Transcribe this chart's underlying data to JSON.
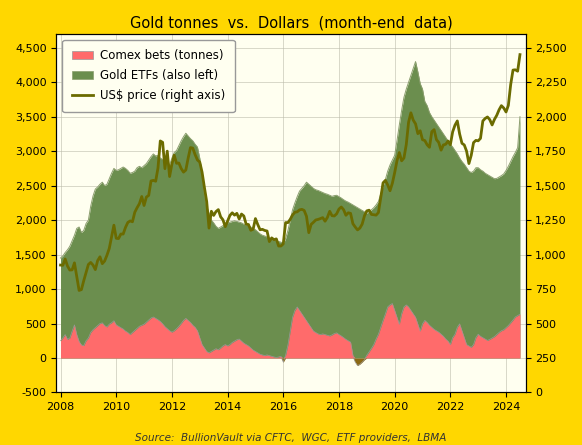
{
  "title": "Gold tonnes  vs.  Dollars  (month-end  data)",
  "source": "Source:  BullionVault via CFTC,  WGC,  ETF providers,  LBMA",
  "background_outer": "#FFD700",
  "background_inner": "#FFFFF0",
  "legend_labels": [
    "Comex bets (tonnes)",
    "Gold ETFs (also left)",
    "US$ price (right axis)"
  ],
  "etf_color": "#6B8E4E",
  "etf_edge_color": "#8B9E6E",
  "comex_color": "#FF6B6B",
  "comex_neg_color": "#8B6914",
  "price_color": "#6B6B00",
  "ylim_left": [
    -500,
    4700
  ],
  "ylim_right": [
    0,
    2600
  ],
  "yticks_left": [
    -500,
    0,
    500,
    1000,
    1500,
    2000,
    2500,
    3000,
    3500,
    4000,
    4500
  ],
  "yticks_right": [
    0,
    250,
    500,
    750,
    1000,
    1250,
    1500,
    1750,
    2000,
    2250,
    2500
  ],
  "xticks": [
    2008,
    2010,
    2012,
    2014,
    2016,
    2018,
    2020,
    2022,
    2024
  ],
  "xlim": [
    2007.85,
    2024.7
  ],
  "dates": [
    2008.0,
    2008.083,
    2008.167,
    2008.25,
    2008.333,
    2008.417,
    2008.5,
    2008.583,
    2008.667,
    2008.75,
    2008.833,
    2008.917,
    2009.0,
    2009.083,
    2009.167,
    2009.25,
    2009.333,
    2009.417,
    2009.5,
    2009.583,
    2009.667,
    2009.75,
    2009.833,
    2009.917,
    2010.0,
    2010.083,
    2010.167,
    2010.25,
    2010.333,
    2010.417,
    2010.5,
    2010.583,
    2010.667,
    2010.75,
    2010.833,
    2010.917,
    2011.0,
    2011.083,
    2011.167,
    2011.25,
    2011.333,
    2011.417,
    2011.5,
    2011.583,
    2011.667,
    2011.75,
    2011.833,
    2011.917,
    2012.0,
    2012.083,
    2012.167,
    2012.25,
    2012.333,
    2012.417,
    2012.5,
    2012.583,
    2012.667,
    2012.75,
    2012.833,
    2012.917,
    2013.0,
    2013.083,
    2013.167,
    2013.25,
    2013.333,
    2013.417,
    2013.5,
    2013.583,
    2013.667,
    2013.75,
    2013.833,
    2013.917,
    2014.0,
    2014.083,
    2014.167,
    2014.25,
    2014.333,
    2014.417,
    2014.5,
    2014.583,
    2014.667,
    2014.75,
    2014.833,
    2014.917,
    2015.0,
    2015.083,
    2015.167,
    2015.25,
    2015.333,
    2015.417,
    2015.5,
    2015.583,
    2015.667,
    2015.75,
    2015.833,
    2015.917,
    2016.0,
    2016.083,
    2016.167,
    2016.25,
    2016.333,
    2016.417,
    2016.5,
    2016.583,
    2016.667,
    2016.75,
    2016.833,
    2016.917,
    2017.0,
    2017.083,
    2017.167,
    2017.25,
    2017.333,
    2017.417,
    2017.5,
    2017.583,
    2017.667,
    2017.75,
    2017.833,
    2017.917,
    2018.0,
    2018.083,
    2018.167,
    2018.25,
    2018.333,
    2018.417,
    2018.5,
    2018.583,
    2018.667,
    2018.75,
    2018.833,
    2018.917,
    2019.0,
    2019.083,
    2019.167,
    2019.25,
    2019.333,
    2019.417,
    2019.5,
    2019.583,
    2019.667,
    2019.75,
    2019.833,
    2019.917,
    2020.0,
    2020.083,
    2020.167,
    2020.25,
    2020.333,
    2020.417,
    2020.5,
    2020.583,
    2020.667,
    2020.75,
    2020.833,
    2020.917,
    2021.0,
    2021.083,
    2021.167,
    2021.25,
    2021.333,
    2021.417,
    2021.5,
    2021.583,
    2021.667,
    2021.75,
    2021.833,
    2021.917,
    2022.0,
    2022.083,
    2022.167,
    2022.25,
    2022.333,
    2022.417,
    2022.5,
    2022.583,
    2022.667,
    2022.75,
    2022.833,
    2022.917,
    2023.0,
    2023.083,
    2023.167,
    2023.25,
    2023.333,
    2023.417,
    2023.5,
    2023.583,
    2023.667,
    2023.75,
    2023.833,
    2023.917,
    2024.0,
    2024.083,
    2024.167,
    2024.25,
    2024.333,
    2024.417,
    2024.5
  ],
  "etf_holdings": [
    1450,
    1480,
    1530,
    1570,
    1620,
    1700,
    1780,
    1880,
    1900,
    1820,
    1850,
    1950,
    2000,
    2200,
    2350,
    2450,
    2480,
    2520,
    2550,
    2500,
    2520,
    2600,
    2680,
    2750,
    2720,
    2730,
    2750,
    2770,
    2750,
    2720,
    2680,
    2690,
    2710,
    2760,
    2780,
    2760,
    2790,
    2820,
    2870,
    2920,
    2960,
    2930,
    2940,
    2900,
    2880,
    2850,
    2830,
    2800,
    2900,
    2980,
    3010,
    3080,
    3150,
    3210,
    3260,
    3220,
    3180,
    3150,
    3100,
    3060,
    2900,
    2680,
    2380,
    2200,
    2100,
    2000,
    1960,
    1910,
    1880,
    1900,
    1920,
    1940,
    1960,
    1970,
    1980,
    1990,
    1980,
    1970,
    1960,
    1940,
    1930,
    1920,
    1900,
    1880,
    1860,
    1830,
    1800,
    1780,
    1770,
    1755,
    1735,
    1720,
    1710,
    1700,
    1690,
    1680,
    1660,
    1730,
    1850,
    2000,
    2150,
    2250,
    2340,
    2420,
    2460,
    2500,
    2550,
    2520,
    2490,
    2460,
    2440,
    2430,
    2415,
    2400,
    2385,
    2375,
    2360,
    2345,
    2355,
    2360,
    2340,
    2320,
    2295,
    2275,
    2260,
    2240,
    2220,
    2200,
    2180,
    2160,
    2140,
    2120,
    2100,
    2120,
    2150,
    2180,
    2220,
    2270,
    2380,
    2490,
    2590,
    2710,
    2800,
    2870,
    2940,
    3150,
    3380,
    3590,
    3780,
    3900,
    4000,
    4100,
    4200,
    4300,
    4150,
    3980,
    3900,
    3720,
    3660,
    3560,
    3500,
    3450,
    3400,
    3350,
    3300,
    3250,
    3200,
    3150,
    3100,
    3060,
    3010,
    2960,
    2900,
    2850,
    2810,
    2760,
    2710,
    2690,
    2710,
    2760,
    2760,
    2730,
    2710,
    2680,
    2660,
    2640,
    2620,
    2600,
    2605,
    2625,
    2645,
    2670,
    2720,
    2780,
    2850,
    2920,
    2980,
    3050,
    3500
  ],
  "comex_net_long": [
    250,
    290,
    340,
    270,
    290,
    390,
    480,
    340,
    240,
    190,
    180,
    250,
    290,
    370,
    410,
    440,
    470,
    500,
    510,
    470,
    450,
    490,
    510,
    540,
    480,
    460,
    440,
    420,
    390,
    370,
    340,
    370,
    400,
    430,
    460,
    475,
    490,
    520,
    550,
    580,
    595,
    575,
    555,
    530,
    495,
    455,
    425,
    395,
    375,
    395,
    425,
    460,
    500,
    545,
    575,
    545,
    515,
    475,
    445,
    395,
    295,
    195,
    145,
    95,
    75,
    95,
    115,
    135,
    120,
    145,
    175,
    195,
    175,
    195,
    225,
    245,
    265,
    275,
    245,
    215,
    195,
    175,
    145,
    115,
    95,
    75,
    55,
    45,
    35,
    45,
    35,
    25,
    15,
    8,
    15,
    25,
    -60,
    40,
    190,
    390,
    590,
    690,
    740,
    690,
    640,
    590,
    540,
    490,
    440,
    390,
    370,
    350,
    340,
    350,
    340,
    330,
    320,
    335,
    355,
    365,
    340,
    320,
    295,
    270,
    250,
    230,
    40,
    -60,
    -110,
    -90,
    -60,
    -25,
    40,
    90,
    140,
    195,
    275,
    345,
    445,
    545,
    640,
    740,
    770,
    790,
    690,
    590,
    490,
    640,
    740,
    770,
    740,
    690,
    640,
    590,
    490,
    390,
    495,
    545,
    515,
    475,
    445,
    415,
    395,
    375,
    345,
    315,
    275,
    245,
    195,
    295,
    345,
    445,
    495,
    395,
    295,
    195,
    175,
    155,
    195,
    295,
    345,
    315,
    295,
    275,
    255,
    270,
    290,
    310,
    340,
    370,
    395,
    410,
    440,
    470,
    510,
    550,
    595,
    615,
    635
  ],
  "gold_price": [
    924,
    922,
    968,
    917,
    888,
    889,
    940,
    839,
    740,
    746,
    810,
    869,
    928,
    943,
    924,
    891,
    956,
    984,
    934,
    953,
    995,
    1044,
    1127,
    1213,
    1118,
    1116,
    1149,
    1149,
    1197,
    1233,
    1244,
    1238,
    1307,
    1340,
    1369,
    1421,
    1356,
    1417,
    1429,
    1534,
    1538,
    1532,
    1628,
    1824,
    1814,
    1623,
    1750,
    1566,
    1656,
    1721,
    1662,
    1664,
    1624,
    1598,
    1613,
    1699,
    1776,
    1772,
    1725,
    1686,
    1671,
    1598,
    1487,
    1384,
    1192,
    1314,
    1284,
    1312,
    1326,
    1274,
    1252,
    1202,
    1244,
    1284,
    1303,
    1286,
    1299,
    1258,
    1294,
    1280,
    1220,
    1218,
    1176,
    1184,
    1261,
    1218,
    1180,
    1183,
    1175,
    1171,
    1094,
    1121,
    1108,
    1114,
    1062,
    1062,
    1078,
    1232,
    1232,
    1256,
    1287,
    1307,
    1310,
    1324,
    1328,
    1320,
    1278,
    1159,
    1219,
    1234,
    1251,
    1255,
    1261,
    1268,
    1242,
    1269,
    1314,
    1282,
    1280,
    1296,
    1330,
    1345,
    1325,
    1285,
    1303,
    1299,
    1224,
    1200,
    1179,
    1192,
    1221,
    1282,
    1317,
    1322,
    1291,
    1289,
    1286,
    1305,
    1414,
    1520,
    1538,
    1505,
    1463,
    1517,
    1594,
    1680,
    1740,
    1680,
    1700,
    1798,
    1960,
    2028,
    1975,
    1948,
    1877,
    1898,
    1833,
    1827,
    1796,
    1778,
    1891,
    1906,
    1834,
    1813,
    1757,
    1795,
    1800,
    1823,
    1796,
    1890,
    1939,
    1969,
    1875,
    1807,
    1795,
    1750,
    1660,
    1720,
    1812,
    1828,
    1825,
    1843,
    1969,
    1987,
    1998,
    1978,
    1940,
    1980,
    2010,
    2050,
    2080,
    2063,
    2034,
    2082,
    2233,
    2338,
    2340,
    2330,
    2450
  ]
}
